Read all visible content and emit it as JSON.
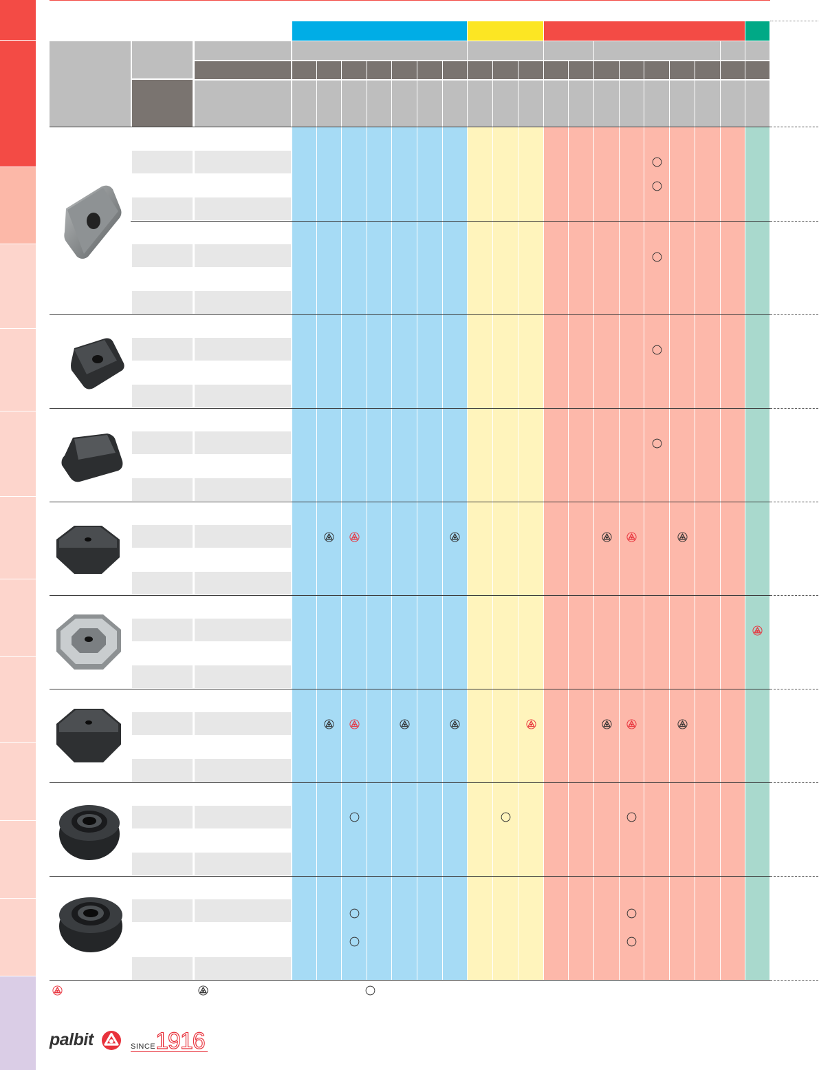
{
  "colors": {
    "tab_red": "#f34b45",
    "tab_salmon": "#fcb8a8",
    "tab_pink": "#fdd5cc",
    "tab_lilac": "#dacde6",
    "blue_group": "#00ade6",
    "yellow_group": "#fce623",
    "red_group": "#f34b45",
    "green_group": "#00a986",
    "blue_light": "#a6dbf5",
    "yellow_light": "#fff4bc",
    "red_light": "#fdb8aa",
    "green_light": "#a9d9cd",
    "header_grey": "#bebebe",
    "header_dark": "#7a7470",
    "row_grey": "#e7e7e7",
    "palbit_red": "#e8323c"
  },
  "legend": {
    "items": [
      {
        "icon": "palbit-logo-red-icon"
      },
      {
        "icon": "palbit-logo-grey-icon"
      },
      {
        "icon": "circle-outline-icon"
      }
    ]
  },
  "footer": {
    "brand": "palbit",
    "since_label": "SINCE",
    "since_year": "1916"
  },
  "table": {
    "column_count": 19,
    "groups": [
      {
        "name": "blue",
        "columns": 7
      },
      {
        "name": "yellow",
        "columns": 3
      },
      {
        "name": "red",
        "columns": 8
      },
      {
        "name": "green",
        "columns": 1
      }
    ],
    "rows": [
      {
        "insert_icon": "rectangular-insert-icon",
        "subrows": [
          {
            "marks": [
              {
                "col": 15,
                "sub": 0,
                "type": "circle"
              },
              {
                "col": 15,
                "sub": 1,
                "type": "circle"
              }
            ]
          },
          {
            "marks": [
              {
                "col": 15,
                "sub": 0,
                "type": "circle"
              }
            ]
          }
        ]
      },
      {
        "insert_icon": "square-insert-icon",
        "marks": [
          {
            "col": 15,
            "type": "circle"
          }
        ]
      },
      {
        "insert_icon": "chamfered-insert-icon",
        "marks": [
          {
            "col": 15,
            "type": "circle"
          }
        ]
      },
      {
        "insert_icon": "octagonal-insert-icon",
        "marks": [
          {
            "col": 2,
            "type": "grey"
          },
          {
            "col": 3,
            "type": "red"
          },
          {
            "col": 7,
            "type": "grey"
          },
          {
            "col": 13,
            "type": "grey"
          },
          {
            "col": 14,
            "type": "red"
          },
          {
            "col": 16,
            "type": "grey"
          }
        ]
      },
      {
        "insert_icon": "octagonal-wiper-insert-icon",
        "marks": [
          {
            "col": 19,
            "type": "red"
          }
        ]
      },
      {
        "insert_icon": "octagonal-insert-icon",
        "marks": [
          {
            "col": 2,
            "type": "grey"
          },
          {
            "col": 3,
            "type": "red"
          },
          {
            "col": 5,
            "type": "grey"
          },
          {
            "col": 7,
            "type": "grey"
          },
          {
            "col": 10,
            "type": "red"
          },
          {
            "col": 13,
            "type": "grey"
          },
          {
            "col": 14,
            "type": "red"
          },
          {
            "col": 16,
            "type": "grey"
          }
        ]
      },
      {
        "insert_icon": "round-insert-icon",
        "marks": [
          {
            "col": 3,
            "type": "circle"
          },
          {
            "col": 9,
            "type": "circle"
          },
          {
            "col": 14,
            "type": "circle"
          }
        ]
      },
      {
        "insert_icon": "round-insert-icon",
        "marks": [
          {
            "col": 3,
            "type": "circle",
            "sub": 0
          },
          {
            "col": 3,
            "type": "circle",
            "sub": 1
          },
          {
            "col": 14,
            "type": "circle",
            "sub": 0
          },
          {
            "col": 14,
            "type": "circle",
            "sub": 1
          }
        ]
      }
    ]
  }
}
